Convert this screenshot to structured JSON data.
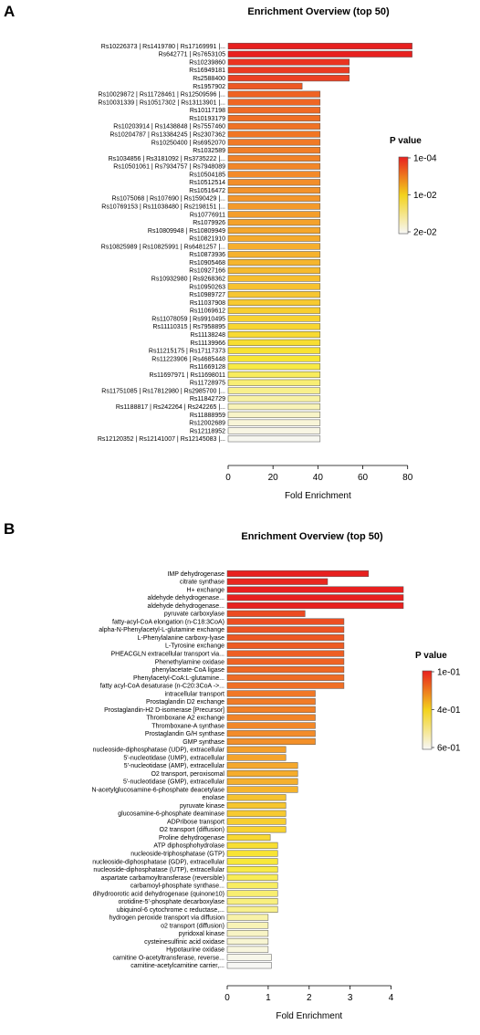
{
  "colors": {
    "low_p": "#e8201f",
    "mid_p": "#f3d31d",
    "high_p": "#f7f7f7",
    "border": "#555555"
  },
  "chart_data": [
    {
      "type": "bar",
      "orientation": "horizontal",
      "panel": "A",
      "title": "Enrichment Overview (top 50)",
      "xlabel": "Fold Enrichment",
      "xlim": [
        0,
        85
      ],
      "xticks": [
        "0",
        "20",
        "40",
        "60",
        "80"
      ],
      "legend_title": "P value",
      "legend_ticks": [
        "1e-04",
        "1e-02",
        "2e-02"
      ],
      "legend_placement": "right",
      "categories": [
        "Rs10226373 | Rs1419780 | Rs17169991 |...",
        "Rs642771 | Rs7653105",
        "Rs10239860",
        "Rs16949181",
        "Rs2588400",
        "Rs1957902",
        "Rs10029872 | Rs11728461 | Rs12509596 |...",
        "Rs10031339 | Rs10517302 | Rs13113901 |...",
        "Rs10117198",
        "Rs10193179",
        "Rs10203914 | Rs1438848 | Rs7557460",
        "Rs10204787 | Rs13384245 | Rs2307362",
        "Rs10250400 | Rs6952070",
        "Rs1032589",
        "Rs1034856 | Rs3181092 | Rs3735222 |...",
        "Rs10501061 | Rs7934757 | Rs7948089",
        "Rs10504185",
        "Rs10512514",
        "Rs10516472",
        "Rs1075068 | Rs107690 | Rs1590429 |...",
        "Rs10769153 | Rs11038480 | Rs2198151 |...",
        "Rs10776911",
        "Rs1079926",
        "Rs10809948 | Rs10809949",
        "Rs10821910",
        "Rs10825989 | Rs10825991 | Rs6481257 |...",
        "Rs10873936",
        "Rs10905468",
        "Rs10927166",
        "Rs10932980 | Rs9268362",
        "Rs10950263",
        "Rs10989727",
        "Rs11037908",
        "Rs11069612",
        "Rs11078059 | Rs9910495",
        "Rs11110315 | Rs7958895",
        "Rs11138248",
        "Rs11139966",
        "Rs11215175 | Rs17117373",
        "Rs11223906 | Rs4685448",
        "Rs11669128",
        "Rs11697971 | Rs11698011",
        "Rs11728975",
        "Rs11751085 | Rs17812980 | Rs2985700 |...",
        "Rs11842729",
        "Rs1188817 | Rs242264 | Rs242265 |...",
        "Rs11888959",
        "Rs12002689",
        "Rs12118952",
        "Rs12120352 | Rs12141007 | Rs12145083 |..."
      ],
      "values": [
        82,
        82,
        54,
        54,
        54,
        33,
        41,
        41,
        41,
        41,
        41,
        41,
        41,
        41,
        41,
        41,
        41,
        41,
        41,
        41,
        41,
        41,
        41,
        41,
        41,
        41,
        41,
        41,
        41,
        41,
        41,
        41,
        41,
        41,
        41,
        41,
        41,
        41,
        41,
        41,
        41,
        41,
        41,
        41,
        41,
        41,
        41,
        41,
        41,
        41
      ],
      "p_values": [
        0.0001,
        0.0001,
        0.0002,
        0.0002,
        0.0002,
        0.0004,
        0.0006,
        0.0006,
        0.0006,
        0.0006,
        0.0006,
        0.0006,
        0.0006,
        0.0006,
        0.0006,
        0.0006,
        0.0006,
        0.0006,
        0.0006,
        0.0006,
        0.0006,
        0.0006,
        0.0006,
        0.0006,
        0.0006,
        0.0006,
        0.0006,
        0.0006,
        0.0006,
        0.0006,
        0.0006,
        0.0006,
        0.0006,
        0.0006,
        0.0006,
        0.0006,
        0.0006,
        0.0006,
        0.0006,
        0.0006,
        0.0006,
        0.0006,
        0.0006,
        0.0006,
        0.0006,
        0.0006,
        0.0006,
        0.0006,
        0.0006,
        0.0006
      ],
      "colors": [
        "#e8201f",
        "#e8201f",
        "#ea3420",
        "#eb3a21",
        "#ec4022",
        "#ee5823",
        "#ef6324",
        "#ef6624",
        "#f06a25",
        "#f06e25",
        "#f07226",
        "#f17626",
        "#f17a27",
        "#f27e27",
        "#f28228",
        "#f28628",
        "#f38a29",
        "#f38e29",
        "#f3922a",
        "#f4962a",
        "#f49a2a",
        "#f49e2b",
        "#f5a22b",
        "#f5a62c",
        "#f5aa2c",
        "#f6ae2d",
        "#f6b22d",
        "#f6b62e",
        "#f6ba2e",
        "#f7be2e",
        "#f7c22f",
        "#f7c62f",
        "#f8ca30",
        "#f8ce30",
        "#f8d231",
        "#f8d631",
        "#f8da32",
        "#f8de32",
        "#f8e233",
        "#f8e634",
        "#f8ea44",
        "#f8ec5c",
        "#f8ee74",
        "#f8f08c",
        "#f8f2a4",
        "#f8f3b8",
        "#f8f4c8",
        "#f8f5d8",
        "#f8f6e4",
        "#f7f7f0"
      ]
    },
    {
      "type": "bar",
      "orientation": "horizontal",
      "panel": "B",
      "title": "Enrichment Overview (top 50)",
      "xlabel": "Fold Enrichment",
      "xlim": [
        0,
        4.5
      ],
      "xticks": [
        "0",
        "1",
        "2",
        "3",
        "4"
      ],
      "legend_title": "P value",
      "legend_ticks": [
        "1e-01",
        "4e-01",
        "6e-01"
      ],
      "legend_placement": "right",
      "categories": [
        "IMP dehydrogenase",
        "citrate synthase",
        "H+ exchange",
        "aldehyde dehydrogenase...",
        "aldehyde dehydrogenase...",
        "pyruvate carboxylase",
        "fatty-acyl-CoA elongation (n-C18:3CoA)",
        "alpha-N-Phenylacetyl-L-glutamine exchange",
        "L-Phenylalanine carboxy-lyase",
        "L-Tyrosine exchange",
        "PHEACGLN extracellular transport via...",
        "Phenethylamine oxidase",
        "phenylacetate-CoA ligase",
        "Phenylacetyl-CoA:L-glutamine...",
        "fatty acyl-CoA desaturase (n-C20:3CoA ->...",
        "intracellular transport",
        "Prostaglandin D2 exchange",
        "Prostaglandin-H2 D-isomerase [Precursor]",
        "Thromboxane A2 exchange",
        "Thromboxane-A synthase",
        "Prostaglandin G/H synthase",
        "GMP synthase",
        "nucleoside-diphosphatase (UDP), extracellular",
        "5'-nucleotidase (UMP), extracellular",
        "5'-nucleotidase (AMP), extracellular",
        "O2 transport, peroxisomal",
        "5'-nucleotidase (GMP), extracellular",
        "N-acetylglucosamine-6-phosphate deacetylase",
        "enolase",
        "pyruvate kinase",
        "glucosamine-6-phosphate deaminase",
        "ADPribose transport",
        "O2 transport (diffusion)",
        "Proline dehydrogenase",
        "ATP diphosphohydrolase",
        "nucleoside-triphosphatase (GTP)",
        "nucleoside-diphosphatase (GDP), extracellular",
        "nucleoside-diphosphatase (UTP), extracellular",
        "aspartate carbamoyltransferase (reversible)",
        "carbamoyl-phosphate synthase...",
        "dihydroorotic acid dehydrogenase (quinone10)",
        "orotidine-5'-phosphate decarboxylase",
        "ubiquinol-6 cytochrome c reductase,...",
        "hydrogen peroxide transport via diffusion",
        "o2 transport (diffusion)",
        "pyridoxal kinase",
        "cysteinesulfinic acid oxidase",
        "Hypotaurine oxidase",
        "carnitine O-acetyltransferase, reverse...",
        "carnitine-acetylcarnitine carrier,..."
      ],
      "values": [
        3.45,
        2.45,
        4.3,
        4.3,
        4.3,
        1.9,
        2.85,
        2.85,
        2.85,
        2.85,
        2.85,
        2.85,
        2.85,
        2.85,
        2.85,
        2.15,
        2.15,
        2.15,
        2.15,
        2.15,
        2.15,
        2.15,
        1.43,
        1.43,
        1.72,
        1.72,
        1.72,
        1.72,
        1.43,
        1.43,
        1.43,
        1.43,
        1.43,
        1.05,
        1.23,
        1.23,
        1.23,
        1.23,
        1.23,
        1.23,
        1.23,
        1.23,
        1.23,
        1.0,
        1.0,
        1.0,
        1.0,
        1.0,
        1.08,
        1.08
      ],
      "p_values": [
        0.1,
        0.11,
        0.1,
        0.1,
        0.1,
        0.16,
        0.14,
        0.15,
        0.15,
        0.16,
        0.16,
        0.17,
        0.17,
        0.17,
        0.18,
        0.19,
        0.2,
        0.2,
        0.21,
        0.21,
        0.22,
        0.22,
        0.27,
        0.28,
        0.28,
        0.29,
        0.29,
        0.3,
        0.34,
        0.35,
        0.35,
        0.36,
        0.36,
        0.38,
        0.41,
        0.42,
        0.43,
        0.43,
        0.44,
        0.44,
        0.44,
        0.45,
        0.45,
        0.5,
        0.51,
        0.52,
        0.53,
        0.53,
        0.56,
        0.58
      ],
      "colors": [
        "#e8201f",
        "#e9281f",
        "#e8201f",
        "#e8201f",
        "#e8201f",
        "#ec4a22",
        "#ed4f22",
        "#ed5323",
        "#ee5723",
        "#ee5b23",
        "#ee5f24",
        "#ef6324",
        "#ef6724",
        "#ef6b25",
        "#f06f25",
        "#f17826",
        "#f17c27",
        "#f28027",
        "#f28428",
        "#f28828",
        "#f38c29",
        "#f39029",
        "#f4a02b",
        "#f5a42b",
        "#f5a82c",
        "#f5ac2c",
        "#f6b02d",
        "#f6b42d",
        "#f6c22f",
        "#f7c62f",
        "#f7ca30",
        "#f7ce30",
        "#f8d231",
        "#f8d832",
        "#f8de33",
        "#f8e434",
        "#f8e83a",
        "#f8ea46",
        "#f8ec54",
        "#f8ed62",
        "#f8ee70",
        "#f8ef7e",
        "#f8f08c",
        "#f8f2a8",
        "#f8f3b6",
        "#f8f4c4",
        "#f8f5d2",
        "#f8f6de",
        "#f7f7ea",
        "#f7f7f4"
      ]
    }
  ]
}
